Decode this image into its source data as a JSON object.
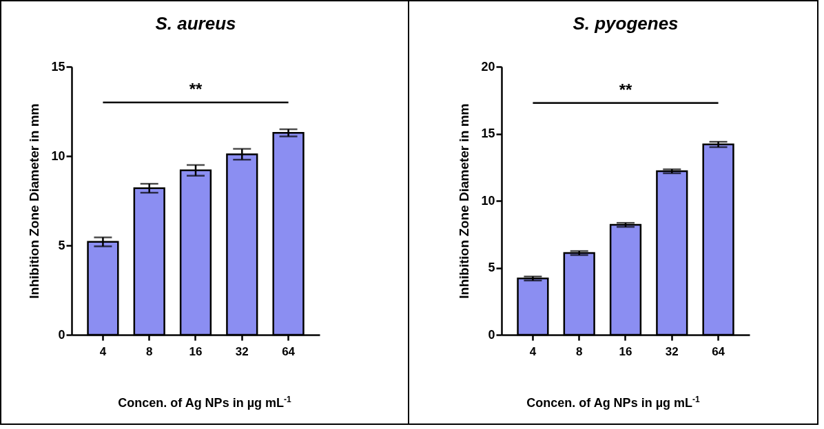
{
  "chart_data": [
    {
      "type": "bar",
      "title": "S. aureus",
      "ylabel": "Inhibition Zone Diameter in mm",
      "xlabel": "Concen. of Ag NPs in µg mL$^{-1}$",
      "categories": [
        "4",
        "8",
        "16",
        "32",
        "64"
      ],
      "values": [
        5.2,
        8.2,
        9.2,
        10.1,
        11.3
      ],
      "errors": [
        0.25,
        0.25,
        0.3,
        0.3,
        0.2
      ],
      "color": "#8b8ef2",
      "ylim": [
        0,
        15
      ],
      "yticks": [
        0,
        5,
        10,
        15
      ],
      "ref_lines": [
        {
          "axis": "y",
          "value": 13,
          "label": "**"
        }
      ]
    },
    {
      "type": "bar",
      "title": "S. pyogenes",
      "ylabel": "Inhibition Zone Diameter in mm",
      "xlabel": "Concen. of Ag NPs in µg mL$^{-1}$",
      "categories": [
        "4",
        "8",
        "16",
        "32",
        "64"
      ],
      "values": [
        4.2,
        6.1,
        8.2,
        12.2,
        14.2
      ],
      "errors": [
        0.15,
        0.15,
        0.15,
        0.15,
        0.2
      ],
      "color": "#8b8ef2",
      "ylim": [
        0,
        20
      ],
      "yticks": [
        0,
        5,
        10,
        15,
        20
      ],
      "ref_lines": [
        {
          "axis": "y",
          "value": 17.3,
          "label": "**"
        }
      ]
    }
  ]
}
